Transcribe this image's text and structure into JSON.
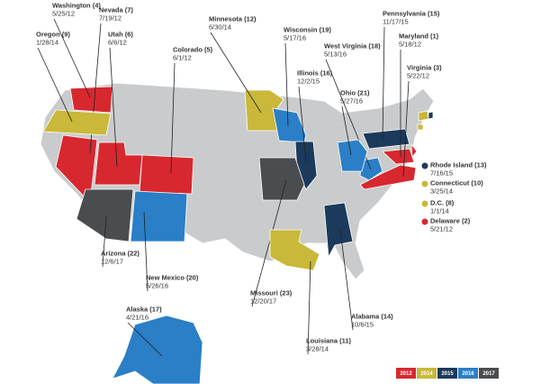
{
  "states": [
    {
      "name": "Washington (4)",
      "date": "5/25/12",
      "color": "#d7282f"
    },
    {
      "name": "Nevada (7)",
      "date": "7/19/12",
      "color": "#d7282f"
    },
    {
      "name": "Oregon (9)",
      "date": "1/28/14",
      "color": "#c9b83a"
    },
    {
      "name": "Utah (6)",
      "date": "6/6/12",
      "color": "#d7282f"
    },
    {
      "name": "Colorado (5)",
      "date": "6/1/12",
      "color": "#d7282f"
    },
    {
      "name": "Minnesota (12)",
      "date": "6/30/14",
      "color": "#c9b83a"
    },
    {
      "name": "Wisconsin (19)",
      "date": "5/17/16",
      "color": "#2a7fc6"
    },
    {
      "name": "Pennsylvania (15)",
      "date": "11/17/15",
      "color": "#1b3a5c"
    },
    {
      "name": "Maryland (1)",
      "date": "5/18/12",
      "color": "#d7282f"
    },
    {
      "name": "West Virginia (18)",
      "date": "5/13/16",
      "color": "#2a7fc6"
    },
    {
      "name": "Virginia (3)",
      "date": "5/22/12",
      "color": "#d7282f"
    },
    {
      "name": "Illinois (16)",
      "date": "12/2/15",
      "color": "#1b3a5c"
    },
    {
      "name": "Ohio (21)",
      "date": "5/27/16",
      "color": "#2a7fc6"
    },
    {
      "name": "Arizona (22)",
      "date": "12/6/17",
      "color": "#4a4d50"
    },
    {
      "name": "New Mexico (20)",
      "date": "5/26/16",
      "color": "#2a7fc6"
    },
    {
      "name": "Missouri (23)",
      "date": "12/20/17",
      "color": "#4a4d50"
    },
    {
      "name": "Louisiana (11)",
      "date": "3/28/14",
      "color": "#c9b83a"
    },
    {
      "name": "Alabama (14)",
      "date": "10/6/15",
      "color": "#1b3a5c"
    },
    {
      "name": "Alaska (17)",
      "date": "4/21/16",
      "color": "#2a7fc6"
    },
    {
      "name": "Rhode Island (13)",
      "date": "7/16/15",
      "color": "#1b3a5c"
    },
    {
      "name": "Connecticut (10)",
      "date": "3/25/14",
      "color": "#c9b83a"
    },
    {
      "name": "D.C. (8)",
      "date": "1/1/14",
      "color": "#c9b83a"
    },
    {
      "name": "Delaware (2)",
      "date": "5/21/12",
      "color": "#d7282f"
    }
  ],
  "legend": [
    {
      "label": "2012",
      "color": "#d7282f"
    },
    {
      "label": "2014",
      "color": "#c9b83a"
    },
    {
      "label": "2015",
      "color": "#1b3a5c"
    },
    {
      "label": "2016",
      "color": "#2a7fc6"
    },
    {
      "label": "2017",
      "color": "#4a4d50"
    }
  ]
}
